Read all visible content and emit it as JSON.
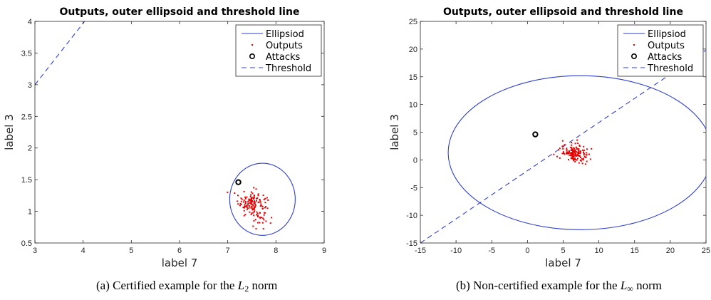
{
  "chart_data": [
    {
      "type": "scatter",
      "title": "Outputs, outer ellipsoid and threshold line",
      "xlabel": "label 7",
      "ylabel": "label 3",
      "xlim": [
        3,
        9
      ],
      "ylim": [
        0.5,
        4
      ],
      "xticks": [
        "3",
        "4",
        "5",
        "6",
        "7",
        "8",
        "9"
      ],
      "yticks": [
        "0.5",
        "1",
        "1.5",
        "2",
        "2.5",
        "3",
        "3.5",
        "4"
      ],
      "legend": {
        "position": "top-right",
        "entries": [
          "Ellipsiod",
          "Outputs",
          "Attacks",
          "Threshold"
        ]
      },
      "ellipse": {
        "center": [
          7.72,
          1.19
        ],
        "rx": 0.68,
        "ry": 0.57
      },
      "threshold_line": {
        "x": [
          3,
          4.03
        ],
        "y": [
          3,
          4
        ]
      },
      "attack": {
        "x": 7.22,
        "y": 1.46
      },
      "outputs_cluster": {
        "center": [
          7.52,
          1.11
        ],
        "spread": [
          0.15,
          0.12
        ],
        "count": 150
      },
      "colors": {
        "ellipse": "#2f3fd0",
        "outputs": "#e60000",
        "attacks": "#000000",
        "threshold": "#2f3fd0"
      }
    },
    {
      "type": "scatter",
      "title": "Outputs, outer ellipsoid and threshold line",
      "xlabel": "label 7",
      "ylabel": "label 3",
      "xlim": [
        -15,
        25
      ],
      "ylim": [
        -15,
        25
      ],
      "xticks": [
        "-15",
        "-10",
        "-5",
        "0",
        "5",
        "10",
        "15",
        "20",
        "25"
      ],
      "yticks": [
        "-15",
        "-10",
        "-5",
        "0",
        "5",
        "10",
        "15",
        "20",
        "25"
      ],
      "legend": {
        "position": "top-right",
        "entries": [
          "Ellipsiod",
          "Outputs",
          "Attacks",
          "Threshold"
        ]
      },
      "ellipse": {
        "center": [
          7.4,
          1.3
        ],
        "rx": 18.5,
        "ry": 13.9
      },
      "threshold_line": {
        "x": [
          -15,
          25
        ],
        "y": [
          -15,
          19.8
        ]
      },
      "attack": {
        "x": 1.1,
        "y": 4.6
      },
      "outputs_cluster": {
        "center": [
          6.6,
          1.2
        ],
        "spread": [
          1.0,
          0.8
        ],
        "count": 150
      },
      "colors": {
        "ellipse": "#2f3fd0",
        "outputs": "#e60000",
        "attacks": "#000000",
        "threshold": "#2f3fd0"
      }
    }
  ],
  "captions": [
    {
      "prefix": "(a) Certified example for the ",
      "norm": "L",
      "sub": "2",
      "suffix": " norm"
    },
    {
      "prefix": "(b) Non-certified example for the ",
      "norm": "L",
      "sub": "∞",
      "suffix": " norm"
    }
  ]
}
